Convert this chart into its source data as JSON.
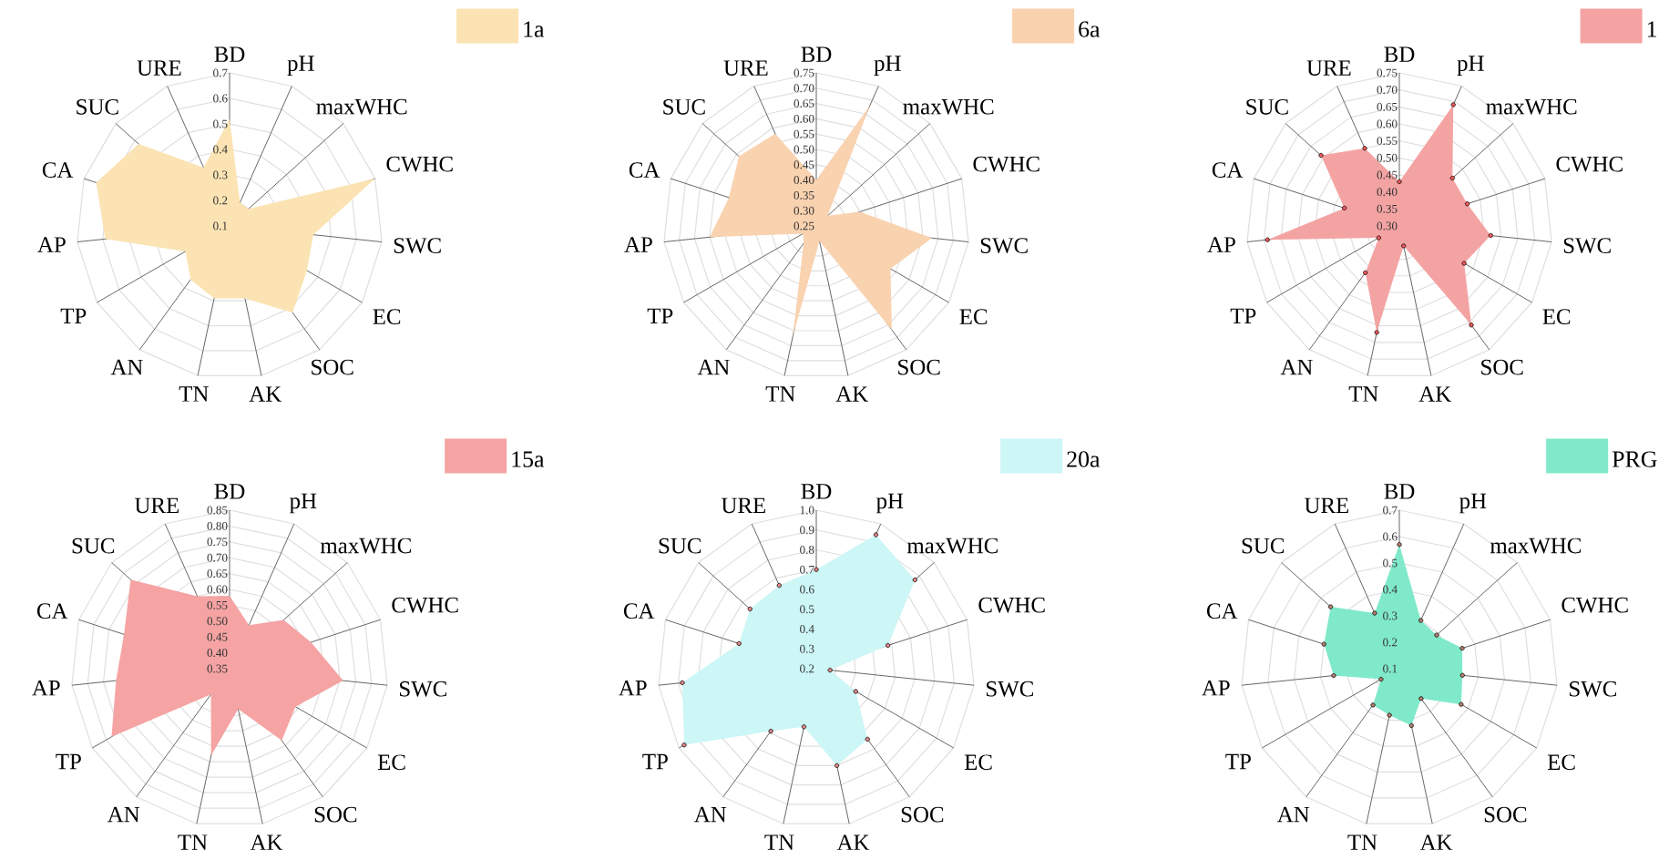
{
  "chart_data": [
    {
      "type": "radar",
      "categories": [
        "BD",
        "pH",
        "maxWHC",
        "CWHC",
        "SWC",
        "EC",
        "SOC",
        "AK",
        "TN",
        "AN",
        "TP",
        "AP",
        "CA",
        "SUC",
        "URE"
      ],
      "series": [
        {
          "name": "1a",
          "color": "#fbe3b3",
          "values": [
            0.52,
            0.2,
            0.2,
            0.7,
            0.43,
            0.45,
            0.52,
            0.39,
            0.39,
            0.36,
            0.3,
            0.59,
            0.65,
            0.58,
            0.35
          ]
        }
      ],
      "ylim": [
        0.1,
        0.7
      ],
      "yticks": [
        0.1,
        0.2,
        0.3,
        0.4,
        0.5,
        0.6,
        0.7
      ],
      "grid": true,
      "legend": "top right"
    },
    {
      "type": "radar",
      "categories": [
        "BD",
        "pH",
        "maxWHC",
        "CWHC",
        "SWC",
        "EC",
        "SOC",
        "AK",
        "TN",
        "AN",
        "TP",
        "AP",
        "CA",
        "SUC",
        "URE"
      ],
      "series": [
        {
          "name": "6a",
          "color": "#f9d2b0",
          "values": [
            0.4,
            0.68,
            0.3,
            0.4,
            0.63,
            0.53,
            0.67,
            0.3,
            0.62,
            0.32,
            0.3,
            0.6,
            0.55,
            0.59,
            0.58
          ]
        }
      ],
      "ylim": [
        0.25,
        0.75
      ],
      "yticks": [
        0.25,
        {
          "value": 0.3,
          "label": "0.30"
        },
        0.35,
        {
          "value": 0.4,
          "label": "0.40"
        },
        0.45,
        {
          "value": 0.5,
          "label": "0.50"
        },
        0.55,
        {
          "value": 0.6,
          "label": "0.60"
        },
        0.65,
        {
          "value": 0.7,
          "label": "0.70"
        },
        0.75
      ],
      "grid": true,
      "legend": "top right"
    },
    {
      "type": "radar",
      "categories": [
        "BD",
        "pH",
        "maxWHC",
        "CWHC",
        "SWC",
        "EC",
        "SOC",
        "AK",
        "TN",
        "AN",
        "TP",
        "AP",
        "CA",
        "SUC",
        "URE"
      ],
      "series": [
        {
          "name": "1",
          "color": "#f4a3a3",
          "values": [
            0.43,
            0.69,
            0.51,
            0.51,
            0.57,
            0.52,
            0.66,
            0.36,
            0.62,
            0.47,
            0.37,
            0.69,
            0.47,
            0.61,
            0.55
          ]
        }
      ],
      "ylim": [
        0.3,
        0.75
      ],
      "yticks": [
        {
          "value": 0.3,
          "label": "0.30"
        },
        0.35,
        {
          "value": 0.4,
          "label": "0.40"
        },
        0.45,
        {
          "value": 0.5,
          "label": "0.50"
        },
        0.55,
        {
          "value": 0.6,
          "label": "0.60"
        },
        0.65,
        {
          "value": 0.7,
          "label": "0.70"
        },
        0.75
      ],
      "grid": true,
      "legend": "top right",
      "marker": "circle"
    },
    {
      "type": "radar",
      "categories": [
        "BD",
        "pH",
        "maxWHC",
        "CWHC",
        "SWC",
        "EC",
        "SOC",
        "AK",
        "TN",
        "AN",
        "TP",
        "AP",
        "CA",
        "SUC",
        "URE"
      ],
      "series": [
        {
          "name": "15a",
          "color": "#f5a3a3",
          "values": [
            0.58,
            0.5,
            0.58,
            0.62,
            0.71,
            0.59,
            0.63,
            0.48,
            0.63,
            0.45,
            0.78,
            0.71,
            0.7,
            0.77,
            0.6
          ]
        }
      ],
      "ylim": [
        0.35,
        0.85
      ],
      "yticks": [
        0.35,
        {
          "value": 0.4,
          "label": "0.40"
        },
        0.45,
        {
          "value": 0.5,
          "label": "0.50"
        },
        0.55,
        {
          "value": 0.6,
          "label": "0.60"
        },
        0.65,
        {
          "value": 0.7,
          "label": "0.70"
        },
        0.75,
        {
          "value": 0.8,
          "label": "0.80"
        },
        0.85
      ],
      "grid": true,
      "legend": "top right"
    },
    {
      "type": "radar",
      "categories": [
        "BD",
        "pH",
        "maxWHC",
        "CWHC",
        "SWC",
        "EC",
        "SOC",
        "AK",
        "TN",
        "AN",
        "TP",
        "AP",
        "CA",
        "SUC",
        "URE"
      ],
      "series": [
        {
          "name": "20a",
          "color": "#cdf6f6",
          "values": [
            0.7,
            0.94,
            0.87,
            0.58,
            0.27,
            0.43,
            0.64,
            0.7,
            0.5,
            0.59,
            0.97,
            0.88,
            0.61,
            0.65,
            0.66
          ]
        }
      ],
      "ylim": [
        0.2,
        1.0
      ],
      "yticks": [
        0.2,
        0.3,
        0.4,
        0.5,
        0.6,
        0.7,
        0.8,
        0.9,
        {
          "value": 1.0,
          "label": "1.0"
        }
      ],
      "grid": true,
      "legend": "top right",
      "marker": "circle"
    },
    {
      "type": "radar",
      "categories": [
        "BD",
        "pH",
        "maxWHC",
        "CWHC",
        "SWC",
        "EC",
        "SOC",
        "AK",
        "TN",
        "AN",
        "TP",
        "AP",
        "CA",
        "SUC",
        "URE"
      ],
      "series": [
        {
          "name": "PRG",
          "color": "#80e9c9",
          "values": [
            0.57,
            0.3,
            0.29,
            0.35,
            0.34,
            0.37,
            0.24,
            0.32,
            0.28,
            0.27,
            0.18,
            0.35,
            0.4,
            0.45,
            0.33
          ]
        }
      ],
      "ylim": [
        0.1,
        0.7
      ],
      "yticks": [
        0.1,
        0.2,
        0.3,
        0.4,
        0.5,
        0.6,
        0.7
      ],
      "grid": true,
      "legend": "top right",
      "marker": "circle"
    }
  ]
}
